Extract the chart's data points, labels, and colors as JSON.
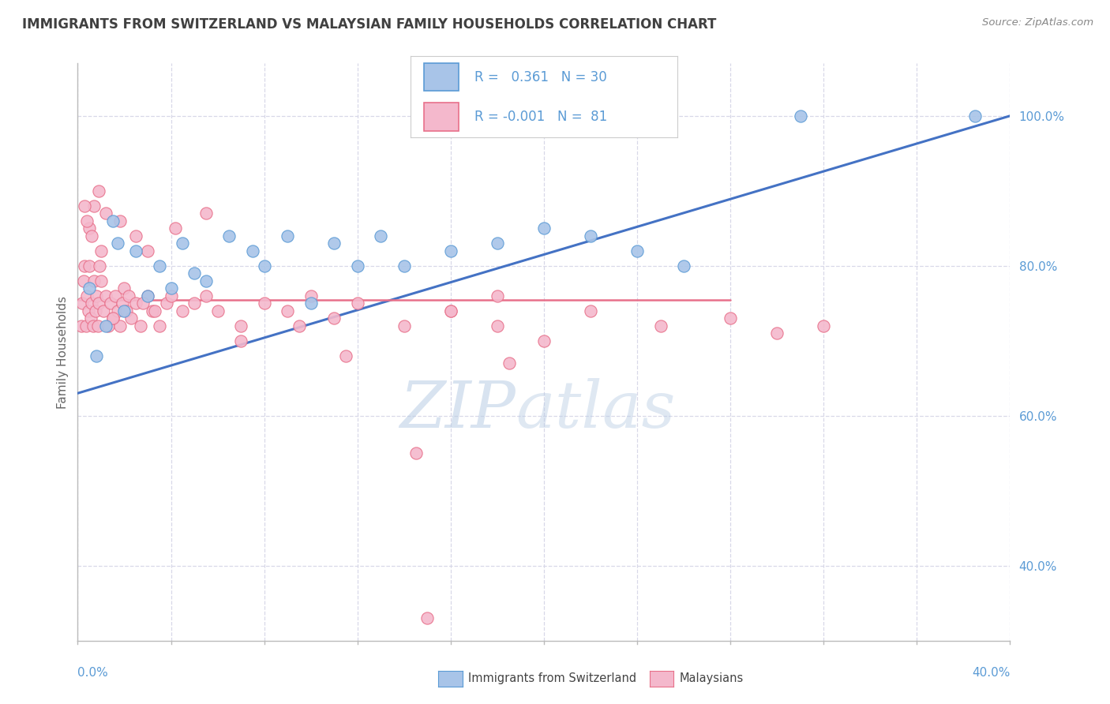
{
  "title": "IMMIGRANTS FROM SWITZERLAND VS MALAYSIAN FAMILY HOUSEHOLDS CORRELATION CHART",
  "source": "Source: ZipAtlas.com",
  "ylabel": "Family Households",
  "swiss_R": "0.361",
  "swiss_N": "30",
  "malay_R": "-0.001",
  "malay_N": "81",
  "blue_fill": "#a8c4e8",
  "blue_edge": "#5b9bd5",
  "pink_fill": "#f4b8cc",
  "pink_edge": "#e8708a",
  "blue_line": "#4472c4",
  "pink_line": "#e8708a",
  "axis_label_color": "#5b9bd5",
  "title_color": "#404040",
  "source_color": "#888888",
  "ylabel_color": "#666666",
  "grid_color": "#d8d8e8",
  "watermark_zip_color": "#c0d0e4",
  "watermark_atlas_color": "#c8d8e8",
  "legend_border_color": "#cccccc",
  "xlim": [
    0,
    40
  ],
  "ylim": [
    30,
    107
  ],
  "yticks": [
    40,
    60,
    80,
    100
  ],
  "swiss_x": [
    1.5,
    1.7,
    2.5,
    3.5,
    4.5,
    5.5,
    6.5,
    7.5,
    8.0,
    9.0,
    10.0,
    11.0,
    12.0,
    13.0,
    14.0,
    16.0,
    18.0,
    20.0,
    22.0,
    24.0,
    26.0,
    0.5,
    0.8,
    1.2,
    2.0,
    3.0,
    4.0,
    5.0,
    31.0,
    38.5
  ],
  "swiss_y": [
    86.0,
    83.0,
    82.0,
    80.0,
    83.0,
    78.0,
    84.0,
    82.0,
    80.0,
    84.0,
    75.0,
    83.0,
    80.0,
    84.0,
    80.0,
    82.0,
    83.0,
    85.0,
    84.0,
    82.0,
    80.0,
    77.0,
    68.0,
    72.0,
    74.0,
    76.0,
    77.0,
    79.0,
    100.0,
    100.0
  ],
  "malay_x": [
    0.15,
    0.2,
    0.25,
    0.3,
    0.35,
    0.4,
    0.45,
    0.5,
    0.55,
    0.6,
    0.65,
    0.7,
    0.75,
    0.8,
    0.85,
    0.9,
    0.95,
    1.0,
    1.1,
    1.2,
    1.3,
    1.4,
    1.5,
    1.6,
    1.7,
    1.8,
    1.9,
    2.0,
    2.1,
    2.2,
    2.3,
    2.5,
    2.7,
    3.0,
    3.2,
    3.5,
    3.8,
    4.0,
    4.5,
    5.0,
    5.5,
    6.0,
    7.0,
    8.0,
    9.0,
    10.0,
    11.0,
    12.0,
    14.0,
    16.0,
    18.0,
    3.3,
    2.8,
    1.5,
    1.2,
    0.9,
    0.7,
    0.5,
    0.4,
    0.3,
    0.6,
    1.0,
    1.8,
    2.5,
    3.0,
    4.2,
    5.5,
    7.0,
    9.5,
    11.5,
    14.5,
    18.5,
    22.0,
    25.0,
    28.0,
    30.0,
    32.0,
    18.0,
    16.0,
    20.0,
    15.0
  ],
  "malay_y": [
    72.0,
    75.0,
    78.0,
    80.0,
    72.0,
    76.0,
    74.0,
    80.0,
    73.0,
    75.0,
    72.0,
    78.0,
    74.0,
    76.0,
    72.0,
    75.0,
    80.0,
    78.0,
    74.0,
    76.0,
    72.0,
    75.0,
    73.0,
    76.0,
    74.0,
    72.0,
    75.0,
    77.0,
    74.0,
    76.0,
    73.0,
    75.0,
    72.0,
    76.0,
    74.0,
    72.0,
    75.0,
    76.0,
    74.0,
    75.0,
    76.0,
    74.0,
    72.0,
    75.0,
    74.0,
    76.0,
    73.0,
    75.0,
    72.0,
    74.0,
    76.0,
    74.0,
    75.0,
    73.0,
    87.0,
    90.0,
    88.0,
    85.0,
    86.0,
    88.0,
    84.0,
    82.0,
    86.0,
    84.0,
    82.0,
    85.0,
    87.0,
    70.0,
    72.0,
    68.0,
    55.0,
    67.0,
    74.0,
    72.0,
    73.0,
    71.0,
    72.0,
    72.0,
    74.0,
    70.0,
    33.0
  ],
  "swiss_trend_x": [
    0,
    40
  ],
  "swiss_trend_y": [
    63,
    100
  ],
  "malay_trend_x": [
    0,
    28
  ],
  "malay_trend_y": [
    75.5,
    75.5
  ]
}
